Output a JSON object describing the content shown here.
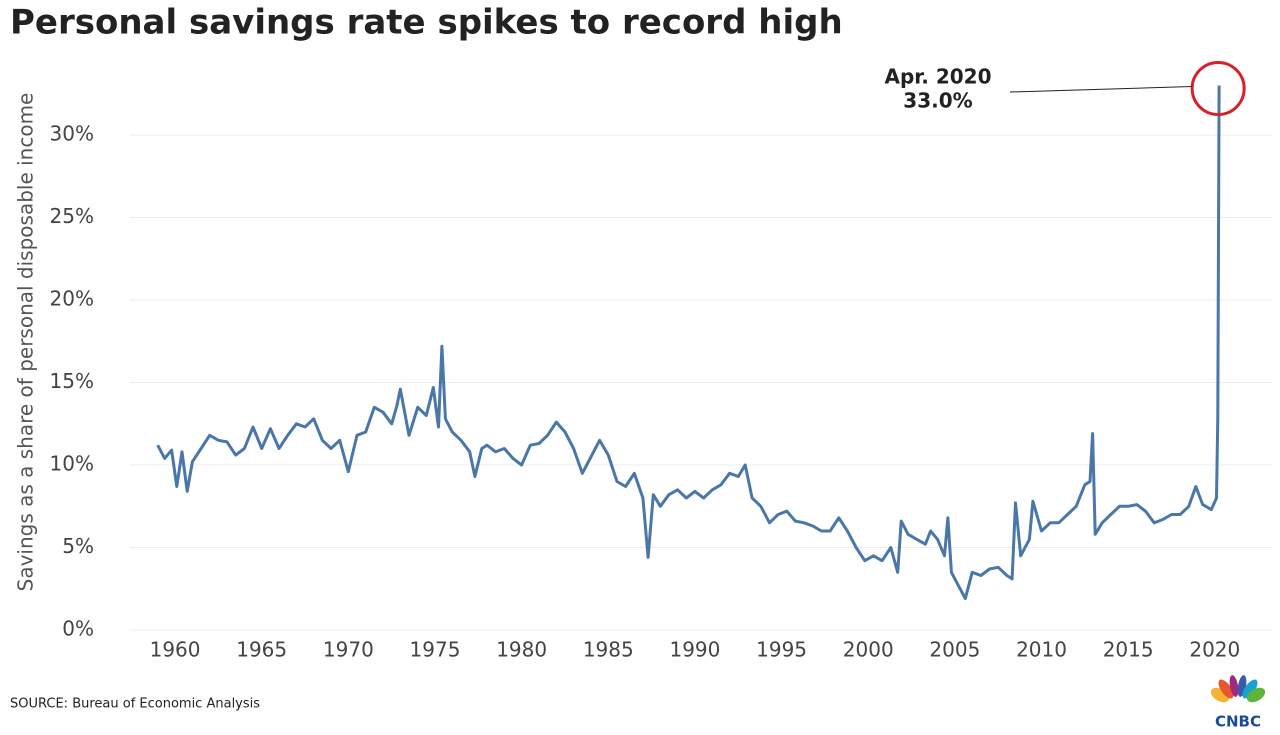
{
  "chart_data": {
    "type": "line",
    "title": "Personal savings rate spikes to record high",
    "y_label": "Savings as a share of personal disposable income",
    "source": "SOURCE: Bureau of Economic Analysis",
    "logo": "CNBC",
    "xlim": [
      1957.4,
      2023.3
    ],
    "xticks": [
      1960,
      1965,
      1970,
      1975,
      1980,
      1985,
      1990,
      1995,
      2000,
      2005,
      2010,
      2015,
      2020
    ],
    "ylim": [
      0,
      34
    ],
    "yticks": [
      {
        "value": 0,
        "label": "0%"
      },
      {
        "value": 5,
        "label": "5%"
      },
      {
        "value": 10,
        "label": "10%"
      },
      {
        "value": 15,
        "label": "15%"
      },
      {
        "value": 20,
        "label": "20%"
      },
      {
        "value": 25,
        "label": "25%"
      },
      {
        "value": 30,
        "label": "30%"
      }
    ],
    "grid": true,
    "color": "#4a77a8",
    "x": [
      1959.0,
      1959.4,
      1959.8,
      1960.1,
      1960.4,
      1960.7,
      1961.0,
      1961.5,
      1962.0,
      1962.5,
      1963.0,
      1963.5,
      1964.0,
      1964.5,
      1965.0,
      1965.5,
      1966.0,
      1966.5,
      1967.0,
      1967.5,
      1968.0,
      1968.5,
      1969.0,
      1969.5,
      1970.0,
      1970.5,
      1971.0,
      1971.5,
      1972.0,
      1972.5,
      1972.8,
      1973.0,
      1973.5,
      1974.0,
      1974.5,
      1974.9,
      1975.2,
      1975.4,
      1975.6,
      1976.0,
      1976.5,
      1977.0,
      1977.3,
      1977.7,
      1978.0,
      1978.5,
      1979.0,
      1979.5,
      1980.0,
      1980.5,
      1981.0,
      1981.5,
      1982.0,
      1982.5,
      1983.0,
      1983.5,
      1984.0,
      1984.5,
      1985.0,
      1985.5,
      1986.0,
      1986.5,
      1987.0,
      1987.3,
      1987.6,
      1988.0,
      1988.5,
      1989.0,
      1989.5,
      1990.0,
      1990.5,
      1991.0,
      1991.5,
      1992.0,
      1992.5,
      1992.9,
      1993.3,
      1993.8,
      1994.3,
      1994.8,
      1995.3,
      1995.8,
      1996.3,
      1996.8,
      1997.3,
      1997.8,
      1998.3,
      1998.8,
      1999.3,
      1999.8,
      2000.3,
      2000.8,
      2001.3,
      2001.7,
      2001.9,
      2002.3,
      2002.8,
      2003.3,
      2003.6,
      2004.0,
      2004.4,
      2004.6,
      2004.8,
      2005.3,
      2005.6,
      2006.0,
      2006.5,
      2007.0,
      2007.5,
      2008.0,
      2008.3,
      2008.5,
      2008.8,
      2009.3,
      2009.5,
      2010.0,
      2010.5,
      2011.0,
      2011.5,
      2012.0,
      2012.5,
      2012.8,
      2012.95,
      2013.1,
      2013.5,
      2014.0,
      2014.5,
      2015.0,
      2015.5,
      2016.0,
      2016.5,
      2017.0,
      2017.5,
      2018.0,
      2018.5,
      2018.9,
      2019.3,
      2019.8,
      2020.1,
      2020.17,
      2020.25
    ],
    "values": [
      11.2,
      10.4,
      10.9,
      8.7,
      10.8,
      8.4,
      10.2,
      11.0,
      11.8,
      11.5,
      11.4,
      10.6,
      11.0,
      12.3,
      11.0,
      12.2,
      11.0,
      11.8,
      12.5,
      12.3,
      12.8,
      11.5,
      11.0,
      11.5,
      9.6,
      11.8,
      12.0,
      13.5,
      13.2,
      12.5,
      13.6,
      14.6,
      11.8,
      13.5,
      13.0,
      14.7,
      12.3,
      17.2,
      12.8,
      12.0,
      11.5,
      10.8,
      9.3,
      11.0,
      11.2,
      10.8,
      11.0,
      10.4,
      10.0,
      11.2,
      11.3,
      11.8,
      12.6,
      12.0,
      11.0,
      9.5,
      10.5,
      11.5,
      10.6,
      9.0,
      8.7,
      9.5,
      8.0,
      4.4,
      8.2,
      7.5,
      8.2,
      8.5,
      8.0,
      8.4,
      8.0,
      8.5,
      8.8,
      9.5,
      9.3,
      10.0,
      8.0,
      7.5,
      6.5,
      7.0,
      7.2,
      6.6,
      6.5,
      6.3,
      6.0,
      6.0,
      6.8,
      6.0,
      5.0,
      4.2,
      4.5,
      4.2,
      5.0,
      3.5,
      6.6,
      5.8,
      5.5,
      5.2,
      6.0,
      5.5,
      4.5,
      6.8,
      3.5,
      2.5,
      1.9,
      3.5,
      3.3,
      3.7,
      3.8,
      3.3,
      3.1,
      7.7,
      4.5,
      5.5,
      7.8,
      6.0,
      6.5,
      6.5,
      7.0,
      7.5,
      8.8,
      9.0,
      11.9,
      5.8,
      6.5,
      7.0,
      7.5,
      7.5,
      7.6,
      7.2,
      6.5,
      6.7,
      7.0,
      7.0,
      7.5,
      8.7,
      7.6,
      7.3,
      8.0,
      12.9,
      33.0
    ],
    "annotation": {
      "x_label": "Apr. 2020",
      "value": 33.0,
      "value_label": "33.0%"
    }
  }
}
